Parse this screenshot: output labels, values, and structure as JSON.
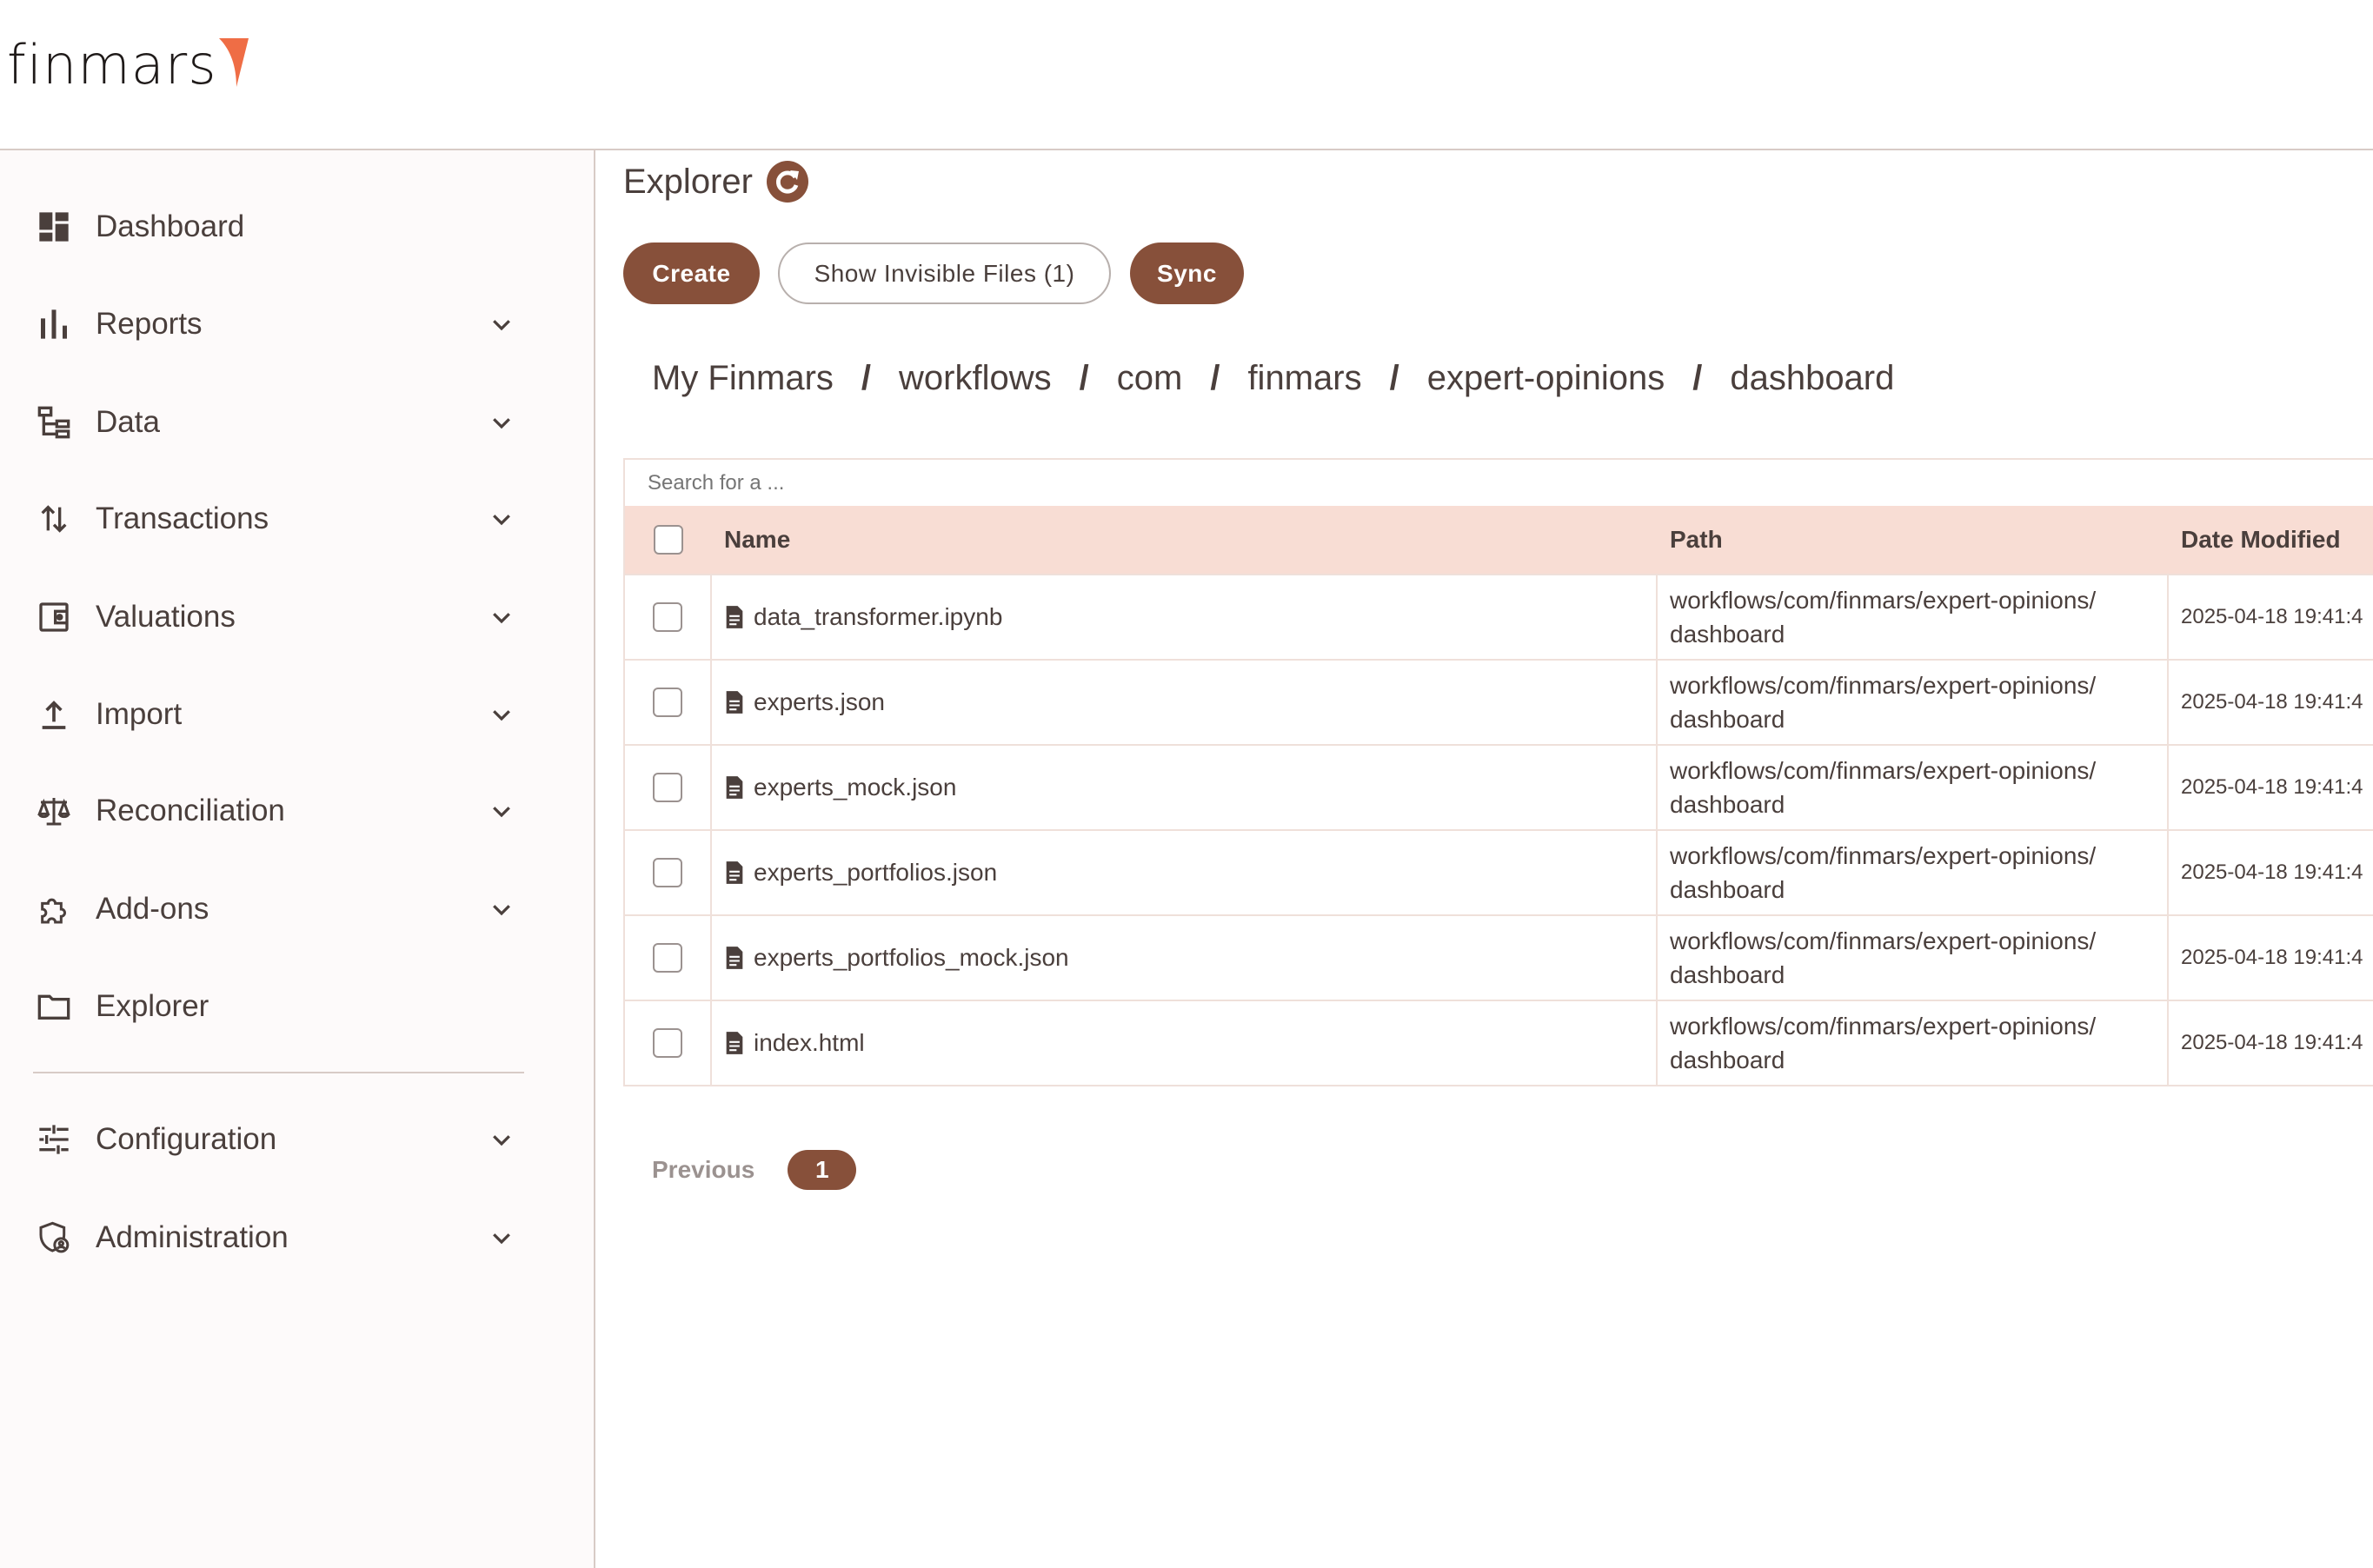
{
  "brand": {
    "logo_text": "finmars",
    "accent": "#87503a",
    "logo_accent": "#ef6d45"
  },
  "sidebar": {
    "items": [
      {
        "label": "Dashboard",
        "icon": "dashboard-icon",
        "expandable": false
      },
      {
        "label": "Reports",
        "icon": "bar-chart-icon",
        "expandable": true
      },
      {
        "label": "Data",
        "icon": "data-tree-icon",
        "expandable": true
      },
      {
        "label": "Transactions",
        "icon": "swap-vertical-icon",
        "expandable": true
      },
      {
        "label": "Valuations",
        "icon": "wallet-icon",
        "expandable": true
      },
      {
        "label": "Import",
        "icon": "upload-icon",
        "expandable": true
      },
      {
        "label": "Reconciliation",
        "icon": "scale-icon",
        "expandable": true
      },
      {
        "label": "Add-ons",
        "icon": "puzzle-icon",
        "expandable": true
      },
      {
        "label": "Explorer",
        "icon": "folder-icon",
        "expandable": false
      },
      {
        "label": "Configuration",
        "icon": "sliders-icon",
        "expandable": true
      },
      {
        "label": "Administration",
        "icon": "shield-icon",
        "expandable": true
      }
    ]
  },
  "main": {
    "title": "Explorer",
    "buttons": {
      "create": "Create",
      "show_invisible": "Show Invisible Files (1)",
      "sync": "Sync"
    },
    "breadcrumbs": [
      "My Finmars",
      "workflows",
      "com",
      "finmars",
      "expert-opinions",
      "dashboard"
    ],
    "breadcrumb_separator": "/",
    "search_placeholder": "Search for a ...",
    "columns": [
      "Name",
      "Path",
      "Date Modified"
    ],
    "rows": [
      {
        "name": "data_transformer.ipynb",
        "path1": "workflows/com/finmars/expert-opinions/",
        "path2": "dashboard",
        "date": "2025-04-18 19:41:4"
      },
      {
        "name": "experts.json",
        "path1": "workflows/com/finmars/expert-opinions/",
        "path2": "dashboard",
        "date": "2025-04-18 19:41:4"
      },
      {
        "name": "experts_mock.json",
        "path1": "workflows/com/finmars/expert-opinions/",
        "path2": "dashboard",
        "date": "2025-04-18 19:41:4"
      },
      {
        "name": "experts_portfolios.json",
        "path1": "workflows/com/finmars/expert-opinions/",
        "path2": "dashboard",
        "date": "2025-04-18 19:41:4"
      },
      {
        "name": "experts_portfolios_mock.json",
        "path1": "workflows/com/finmars/expert-opinions/",
        "path2": "dashboard",
        "date": "2025-04-18 19:41:4"
      },
      {
        "name": "index.html",
        "path1": "workflows/com/finmars/expert-opinions/",
        "path2": "dashboard",
        "date": "2025-04-18 19:41:4"
      }
    ],
    "pagination": {
      "previous": "Previous",
      "current": "1"
    }
  }
}
